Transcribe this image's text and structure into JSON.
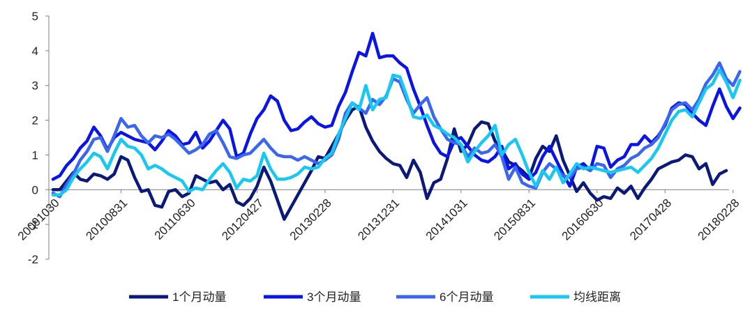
{
  "chart_data": {
    "type": "line",
    "title": "",
    "xlabel": "",
    "ylabel": "",
    "ylim": [
      -2,
      5
    ],
    "yticks": [
      -2,
      -1,
      0,
      1,
      2,
      3,
      4,
      5
    ],
    "x_tick_labels": [
      "20091030",
      "20100831",
      "20110630",
      "20120427",
      "20130228",
      "20131231",
      "20141031",
      "20150831",
      "20160630",
      "20170428",
      "20180228"
    ],
    "x_tick_index": [
      0,
      10,
      20,
      30,
      40,
      50,
      60,
      70,
      80,
      90,
      100
    ],
    "grid": false,
    "legend_position": "bottom",
    "series": [
      {
        "name": "1个月动量",
        "color": "#0b1a78",
        "values": [
          0.0,
          0.0,
          0.25,
          0.5,
          0.3,
          0.25,
          0.45,
          0.4,
          0.3,
          0.45,
          0.95,
          0.85,
          0.35,
          -0.05,
          0.0,
          -0.45,
          -0.5,
          -0.05,
          0.0,
          -0.2,
          -0.1,
          0.4,
          0.3,
          0.2,
          0.25,
          0.0,
          0.15,
          -0.35,
          -0.45,
          -0.25,
          0.1,
          0.65,
          0.25,
          -0.3,
          -0.85,
          -0.5,
          -0.15,
          0.2,
          0.55,
          0.95,
          0.9,
          1.25,
          1.6,
          2.0,
          2.3,
          2.4,
          1.8,
          1.4,
          1.1,
          0.9,
          0.75,
          0.7,
          0.35,
          0.85,
          0.5,
          -0.25,
          0.2,
          0.3,
          0.9,
          1.75,
          1.1,
          1.3,
          1.75,
          1.95,
          1.9,
          1.4,
          1.15,
          0.8,
          0.7,
          0.55,
          0.35,
          0.9,
          1.25,
          1.1,
          1.55,
          0.85,
          0.4,
          -0.05,
          0.2,
          -0.1,
          -0.3,
          -0.2,
          -0.25,
          0.05,
          -0.1,
          0.1,
          -0.25,
          0.05,
          0.3,
          0.6,
          0.7,
          0.8,
          0.85,
          1.0,
          0.95,
          0.6,
          0.75,
          0.15,
          0.45,
          0.55
        ]
      },
      {
        "name": "3个月动量",
        "color": "#0a14e6",
        "values": [
          0.3,
          0.4,
          0.7,
          0.9,
          1.2,
          1.4,
          1.8,
          1.55,
          1.15,
          1.5,
          1.65,
          1.55,
          1.45,
          1.4,
          1.35,
          1.15,
          1.4,
          1.7,
          1.55,
          1.3,
          1.35,
          1.65,
          1.2,
          1.4,
          1.7,
          2.0,
          1.75,
          0.95,
          1.05,
          1.6,
          2.05,
          2.3,
          2.7,
          2.55,
          2.0,
          1.7,
          1.75,
          1.95,
          2.1,
          1.9,
          1.8,
          1.85,
          2.4,
          2.8,
          3.4,
          3.95,
          3.85,
          4.5,
          3.8,
          3.85,
          3.85,
          3.65,
          3.5,
          2.9,
          2.4,
          1.85,
          1.35,
          1.05,
          0.95,
          1.4,
          1.5,
          1.25,
          1.0,
          0.85,
          0.8,
          0.95,
          1.25,
          0.6,
          0.75,
          0.45,
          0.3,
          0.5,
          0.95,
          1.25,
          0.85,
          0.45,
          0.1,
          0.65,
          0.75,
          0.55,
          1.25,
          1.2,
          0.65,
          0.85,
          0.95,
          1.3,
          1.3,
          1.55,
          1.35,
          1.55,
          1.85,
          2.35,
          2.5,
          2.45,
          2.2,
          2.0,
          1.85,
          2.4,
          2.9,
          2.4,
          2.05,
          2.35
        ]
      },
      {
        "name": "6个月动量",
        "color": "#3a66f0",
        "values": [
          -0.1,
          -0.2,
          0.15,
          0.45,
          0.85,
          1.1,
          1.45,
          1.5,
          1.1,
          1.55,
          2.05,
          1.8,
          1.85,
          1.55,
          1.35,
          1.55,
          1.5,
          1.6,
          1.45,
          1.25,
          1.05,
          1.15,
          1.3,
          1.6,
          1.7,
          1.35,
          0.95,
          0.9,
          1.0,
          1.05,
          1.25,
          1.45,
          1.2,
          1.0,
          0.95,
          0.95,
          0.85,
          0.95,
          0.85,
          0.75,
          0.85,
          1.0,
          1.45,
          2.2,
          2.5,
          2.35,
          2.2,
          2.6,
          2.45,
          2.7,
          3.2,
          3.1,
          2.6,
          2.2,
          2.45,
          2.65,
          2.1,
          1.75,
          1.45,
          1.35,
          1.3,
          0.95,
          1.2,
          1.05,
          1.1,
          1.3,
          0.95,
          0.3,
          0.65,
          0.2,
          0.1,
          0.05,
          0.5,
          0.75,
          0.6,
          0.4,
          0.35,
          0.6,
          0.65,
          0.55,
          0.75,
          0.7,
          0.35,
          0.6,
          0.7,
          0.9,
          1.0,
          1.2,
          1.3,
          1.5,
          1.9,
          2.3,
          2.45,
          2.5,
          2.3,
          2.6,
          3.05,
          3.3,
          3.65,
          3.2,
          3.0,
          3.4
        ]
      },
      {
        "name": "均线距离",
        "color": "#16c8f2",
        "values": [
          -0.15,
          -0.15,
          0.0,
          0.35,
          0.6,
          0.8,
          1.05,
          0.95,
          0.6,
          1.05,
          1.45,
          1.25,
          1.2,
          1.0,
          0.6,
          0.7,
          0.6,
          0.45,
          0.35,
          0.25,
          -0.05,
          0.05,
          0.0,
          0.3,
          0.55,
          0.75,
          0.5,
          0.05,
          0.3,
          0.25,
          0.4,
          1.05,
          0.6,
          0.3,
          0.3,
          0.35,
          0.45,
          0.65,
          0.6,
          0.65,
          0.9,
          1.05,
          1.6,
          2.05,
          2.5,
          2.3,
          3.0,
          2.3,
          2.6,
          2.65,
          3.3,
          3.25,
          2.7,
          2.1,
          2.05,
          2.15,
          1.85,
          1.75,
          1.6,
          1.5,
          1.3,
          0.8,
          1.1,
          1.35,
          1.55,
          1.85,
          1.0,
          1.3,
          1.45,
          1.0,
          0.5,
          0.1,
          0.55,
          0.3,
          0.65,
          0.2,
          0.45,
          0.75,
          0.6,
          0.65,
          0.6,
          0.55,
          0.5,
          0.55,
          0.6,
          0.65,
          0.5,
          0.7,
          0.9,
          1.2,
          1.6,
          2.0,
          2.25,
          2.3,
          2.1,
          2.5,
          2.9,
          3.05,
          3.45,
          3.1,
          2.65,
          3.15
        ]
      }
    ]
  }
}
